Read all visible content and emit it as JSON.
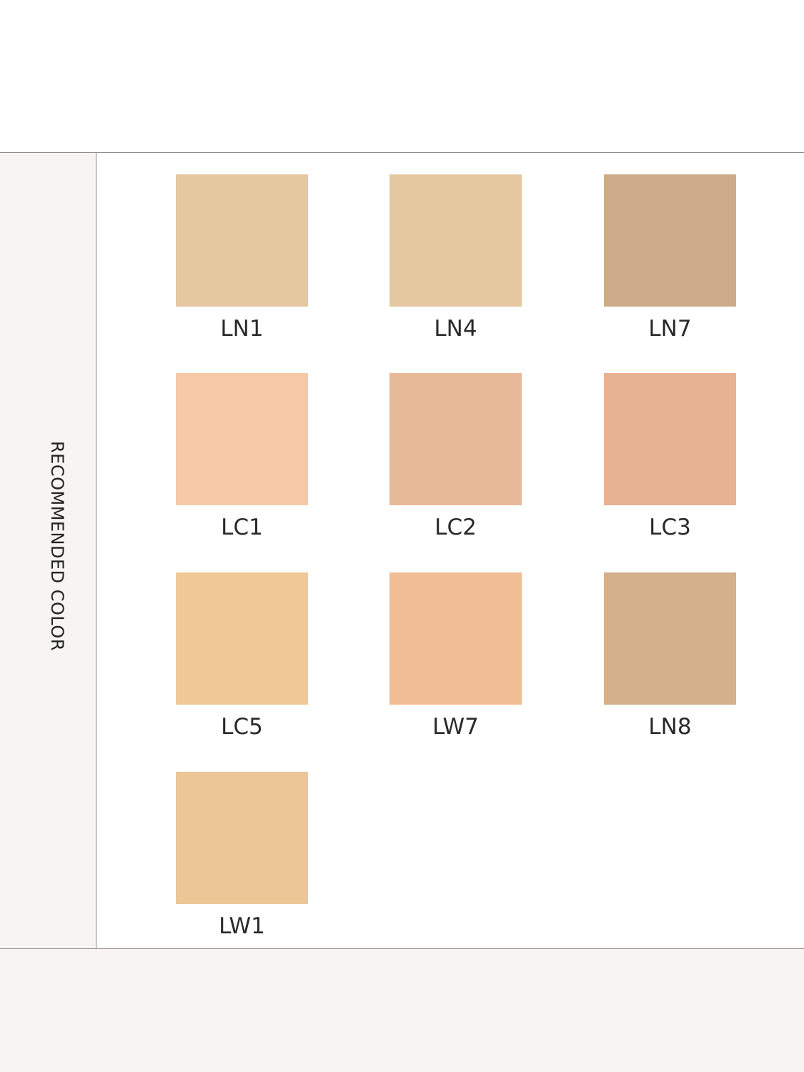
{
  "section_label": "RECOMMENDED COLOR",
  "swatches": [
    {
      "label": "LN1",
      "color": "#e5c7a0"
    },
    {
      "label": "LN4",
      "color": "#e5c8a0"
    },
    {
      "label": "LN7",
      "color": "#cdab88"
    },
    {
      "label": "LC1",
      "color": "#f5c9a8"
    },
    {
      "label": "LC2",
      "color": "#e8b999"
    },
    {
      "label": "LC3",
      "color": "#e7b194"
    },
    {
      "label": "LC5",
      "color": "#f1c999"
    },
    {
      "label": "LW7",
      "color": "#f0bd94"
    },
    {
      "label": "LN8",
      "color": "#d5b08c"
    },
    {
      "label": "LW1",
      "color": "#ecc696"
    }
  ]
}
